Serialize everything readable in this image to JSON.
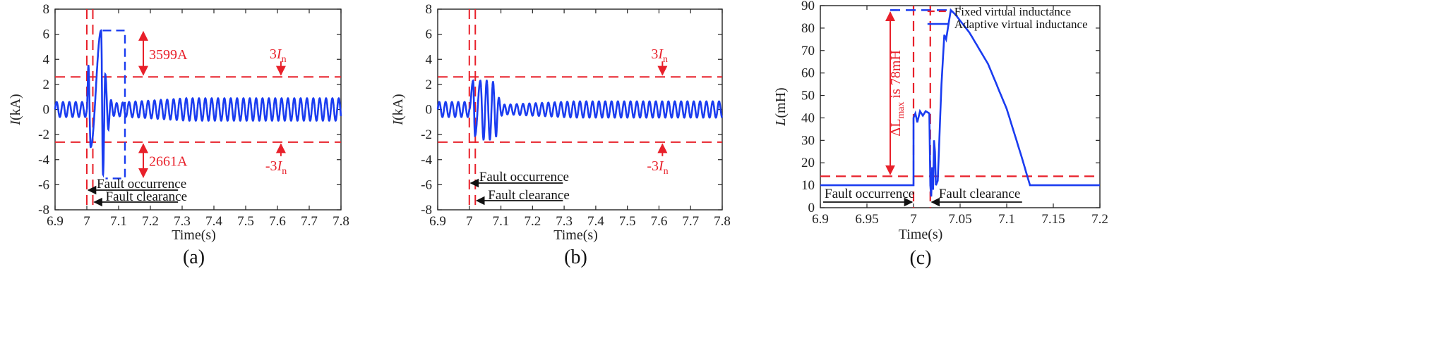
{
  "colors": {
    "signal": "#1a3cf0",
    "threshold": "#e8202a",
    "axis": "#222222",
    "text": "#111111"
  },
  "chart_data": [
    {
      "type": "line",
      "caption": "(a)",
      "ylabel_main": "I",
      "ylabel_unit": "(kA)",
      "xlabel": "Time(s)",
      "xlim": [
        6.9,
        7.8
      ],
      "ylim": [
        -8,
        8
      ],
      "x_ticks": [
        "6.9",
        "7",
        "7.1",
        "7.2",
        "7.3",
        "7.4",
        "7.5",
        "7.6",
        "7.7",
        "7.8"
      ],
      "y_ticks": [
        "8",
        "6",
        "4",
        "2",
        "0",
        "-2",
        "-4",
        "-6",
        "-8"
      ],
      "signal": {
        "steady_amplitude_kA": 0.6,
        "frequency_hz": 50,
        "fault_start": 7.0,
        "fault_clear": 7.01,
        "fault_peaks": [
          {
            "x": 7.005,
            "y": 3.5
          },
          {
            "x": 7.012,
            "y": -3.0
          },
          {
            "x": 7.045,
            "y": 6.3
          },
          {
            "x": 7.051,
            "y": -5.2
          },
          {
            "x": 7.058,
            "y": 2.8
          },
          {
            "x": 7.068,
            "y": -1.6
          }
        ],
        "post_amplitude_kA": 0.9
      },
      "thresholds": {
        "upper_kA": 2.6,
        "lower_kA": -2.6
      },
      "fault_lines_x": [
        7.0,
        7.01
      ],
      "bracket": {
        "x_left": 7.05,
        "x_right": 7.12,
        "top_kA": 6.3,
        "bottom_kA": -5.5
      },
      "annotations": {
        "over_upper": "3599A",
        "over_lower": "2661A",
        "upper_label_main": "3",
        "upper_label_var": "I",
        "upper_label_sub": "n",
        "lower_label_main": "-3",
        "lower_label_var": "I",
        "lower_label_sub": "n",
        "fault_occurrence": "Fault occurrence",
        "fault_clearance": "Fault clearance"
      }
    },
    {
      "type": "line",
      "caption": "(b)",
      "ylabel_main": "I",
      "ylabel_unit": "(kA)",
      "xlabel": "Time(s)",
      "xlim": [
        6.9,
        7.8
      ],
      "ylim": [
        -8,
        8
      ],
      "x_ticks": [
        "6.9",
        "7",
        "7.1",
        "7.2",
        "7.3",
        "7.4",
        "7.5",
        "7.6",
        "7.7",
        "7.8"
      ],
      "y_ticks": [
        "8",
        "6",
        "4",
        "2",
        "0",
        "-2",
        "-4",
        "-6",
        "-8"
      ],
      "signal": {
        "steady_amplitude_kA": 0.6,
        "frequency_hz": 50,
        "fault_start": 7.0,
        "fault_clear": 7.01,
        "fault_peaks": [
          {
            "x": 7.012,
            "y": 2.3
          },
          {
            "x": 7.018,
            "y": -2.1
          },
          {
            "x": 7.035,
            "y": 2.3
          },
          {
            "x": 7.045,
            "y": -2.4
          },
          {
            "x": 7.055,
            "y": 2.3
          },
          {
            "x": 7.065,
            "y": -2.4
          },
          {
            "x": 7.075,
            "y": 2.2
          },
          {
            "x": 7.085,
            "y": -2.2
          }
        ],
        "post_amplitude_kA": 0.65
      },
      "thresholds": {
        "upper_kA": 2.6,
        "lower_kA": -2.6
      },
      "fault_lines_x": [
        7.0,
        7.01
      ],
      "annotations": {
        "upper_label_main": "3",
        "upper_label_var": "I",
        "upper_label_sub": "n",
        "lower_label_main": "-3",
        "lower_label_var": "I",
        "lower_label_sub": "n",
        "fault_occurrence": "Fault occurrence",
        "fault_clearance": "Fault clearance"
      }
    },
    {
      "type": "line",
      "caption": "(c)",
      "ylabel_main": "L",
      "ylabel_unit": "(mH)",
      "xlabel": "Time(s)",
      "xlim": [
        6.9,
        7.2
      ],
      "ylim": [
        0,
        90
      ],
      "x_ticks": [
        "6.9",
        "6.95",
        "7",
        "7.05",
        "7.1",
        "7.15",
        "7.2"
      ],
      "y_ticks": [
        "90",
        "80",
        "70",
        "60",
        "50",
        "40",
        "30",
        "20",
        "10",
        "0"
      ],
      "series": [
        {
          "name": "Fixed virtual inductance",
          "style": "dashed",
          "color": "#e8202a",
          "points": [
            [
              6.9,
              14
            ],
            [
              7.2,
              14
            ]
          ]
        },
        {
          "name": "Adaptive virtual inductance",
          "style": "solid",
          "color": "#1a3cf0",
          "points": [
            [
              6.9,
              10
            ],
            [
              7.0,
              10
            ],
            [
              7.0,
              40
            ],
            [
              7.002,
              42
            ],
            [
              7.004,
              38
            ],
            [
              7.007,
              43
            ],
            [
              7.01,
              41
            ],
            [
              7.013,
              43
            ],
            [
              7.017,
              42
            ],
            [
              7.018,
              10
            ],
            [
              7.019,
              5
            ],
            [
              7.02,
              18
            ],
            [
              7.021,
              8
            ],
            [
              7.022,
              30
            ],
            [
              7.023,
              25
            ],
            [
              7.024,
              10
            ],
            [
              7.026,
              12
            ],
            [
              7.03,
              55
            ],
            [
              7.033,
              77
            ],
            [
              7.035,
              75
            ],
            [
              7.038,
              83
            ],
            [
              7.04,
              88
            ],
            [
              7.045,
              86
            ],
            [
              7.06,
              78
            ],
            [
              7.08,
              64
            ],
            [
              7.1,
              44
            ],
            [
              7.115,
              24
            ],
            [
              7.125,
              10
            ],
            [
              7.2,
              10
            ]
          ]
        }
      ],
      "dotted_top": {
        "x_from": 6.975,
        "x_to": 7.04,
        "y": 88
      },
      "fault_lines_x": [
        7.0,
        7.018
      ],
      "delta_arrow": {
        "x": 6.975,
        "top": 88,
        "bottom": 14
      },
      "annotations": {
        "delta_main": "ΔL",
        "delta_sub": "max",
        "delta_tail": " is 78mH",
        "fault_occurrence": "Fault occurrence",
        "fault_clearance": "Fault clearance"
      },
      "legend_position": "top-right"
    }
  ]
}
